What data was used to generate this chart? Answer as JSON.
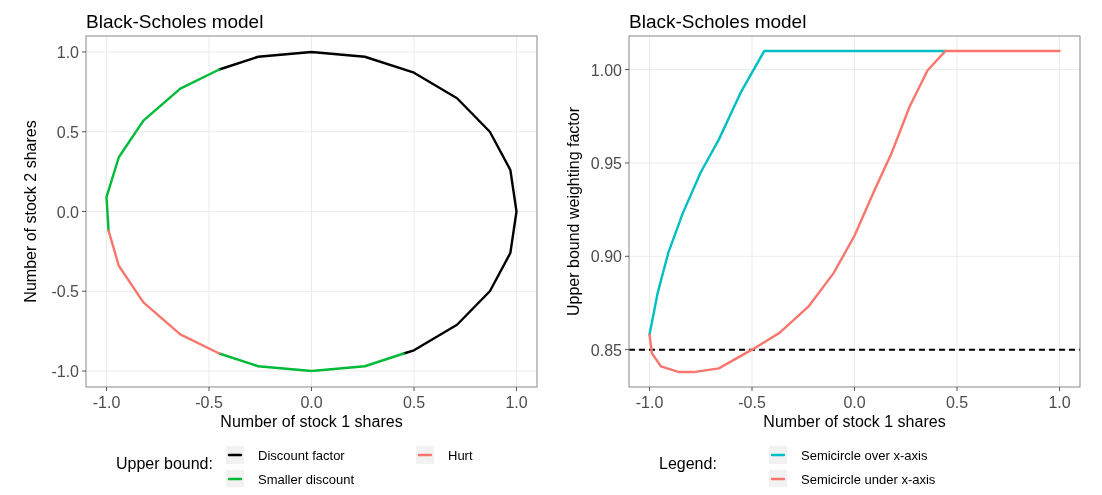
{
  "chart_data": [
    {
      "type": "line",
      "title": "Black-Scholes model",
      "xlabel": "Number of stock 1 shares",
      "ylabel": "Number of stock 2 shares",
      "legend_title": "Upper bound:",
      "legend": "bottom",
      "grid": true,
      "xlim": [
        -1.1,
        1.1
      ],
      "ylim": [
        -1.1,
        1.1
      ],
      "xticks": [
        {
          "value": -1,
          "label": "-1.0"
        },
        {
          "value": -0.5,
          "label": "-0.5"
        },
        {
          "value": 0,
          "label": "0.0"
        },
        {
          "value": 0.5,
          "label": "0.5"
        },
        {
          "value": 1,
          "label": "1.0"
        }
      ],
      "yticks": [
        {
          "value": -1,
          "label": "-1.0"
        },
        {
          "value": -0.5,
          "label": "-0.5"
        },
        {
          "value": 0,
          "label": "0.0"
        },
        {
          "value": 0.5,
          "label": "0.5"
        },
        {
          "value": 1,
          "label": "1.0"
        }
      ],
      "series": [
        {
          "name": "Discount factor",
          "color": "#000000",
          "x": [
            -0.45,
            -0.26,
            0,
            0.26,
            0.5,
            0.71,
            0.87,
            0.97,
            1,
            0.97,
            0.87,
            0.71,
            0.5,
            0.45
          ],
          "values": [
            0.89,
            0.97,
            1,
            0.97,
            0.87,
            0.71,
            0.5,
            0.26,
            0,
            -0.26,
            -0.5,
            -0.71,
            -0.87,
            -0.89
          ]
        },
        {
          "name": "Smaller discount",
          "color": "#00ba38",
          "x": [
            -0.45,
            -0.64,
            -0.82,
            -0.94,
            -1,
            -0.99,
            null,
            -0.45,
            -0.26,
            0,
            0.26,
            0.45
          ],
          "values": [
            0.89,
            0.77,
            0.57,
            0.34,
            0.09,
            -0.12,
            null,
            -0.89,
            -0.97,
            -1,
            -0.97,
            -0.89
          ]
        },
        {
          "name": "Hurt",
          "color": "#f8766d",
          "x": [
            -0.99,
            -0.94,
            -0.82,
            -0.64,
            -0.45
          ],
          "values": [
            -0.12,
            -0.34,
            -0.57,
            -0.77,
            -0.89
          ]
        }
      ]
    },
    {
      "type": "line",
      "title": "Black-Scholes model",
      "xlabel": "Number of stock 1 shares",
      "ylabel": "Upper bound weighting factor",
      "legend_title": "Legend:",
      "legend": "bottom",
      "grid": true,
      "xlim": [
        -1.1,
        1.1
      ],
      "ylim": [
        0.83,
        1.018
      ],
      "xticks": [
        {
          "value": -1,
          "label": "-1.0"
        },
        {
          "value": -0.5,
          "label": "-0.5"
        },
        {
          "value": 0,
          "label": "0.0"
        },
        {
          "value": 0.5,
          "label": "0.5"
        },
        {
          "value": 1,
          "label": "1.0"
        }
      ],
      "yticks": [
        0.85,
        {
          "value": 0.9,
          "label": "0.90"
        },
        0.95,
        {
          "value": 1,
          "label": "1.00"
        }
      ],
      "ref_lines": [
        {
          "axis": "y",
          "value": 0.85,
          "color": "#000000",
          "line_style": "dashed"
        }
      ],
      "series": [
        {
          "name": "Semicircle over x-axis",
          "color": "#00bfc4",
          "x": [
            -1,
            -0.961,
            -0.908,
            -0.838,
            -0.75,
            -0.662,
            -0.556,
            -0.44,
            0.444
          ],
          "values": [
            0.858,
            0.88,
            0.902,
            0.923,
            0.945,
            0.9625,
            0.9875,
            1.01,
            1.01
          ]
        },
        {
          "name": "Semicircle under x-axis",
          "color": "#f8766d",
          "x": [
            -1,
            -0.988,
            -0.944,
            -0.856,
            -0.785,
            -0.662,
            -0.5,
            -0.366,
            -0.225,
            -0.102,
            0,
            0.092,
            0.18,
            0.268,
            0.356,
            0.444,
            1
          ],
          "values": [
            0.858,
            0.848,
            0.841,
            0.838,
            0.838,
            0.84,
            0.85,
            0.859,
            0.873,
            0.891,
            0.911,
            0.934,
            0.955,
            0.98,
            0.9995,
            1.01,
            1.01
          ]
        }
      ]
    }
  ]
}
